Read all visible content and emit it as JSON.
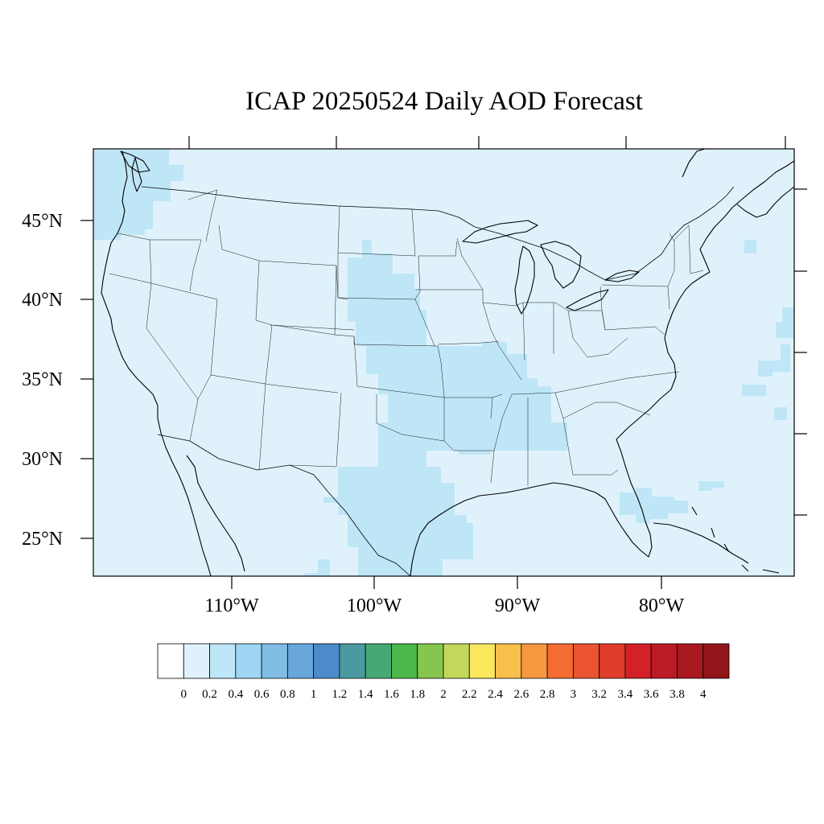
{
  "title": "ICAP 20250524 Daily AOD Forecast",
  "map": {
    "background_color": "#dff2fb",
    "lat_labels": [
      "45°N",
      "40°N",
      "35°N",
      "30°N",
      "25°N"
    ],
    "lon_labels": [
      "110°W",
      "100°W",
      "90°W",
      "80°W"
    ]
  },
  "colorbar": {
    "tick_labels": [
      "0",
      "0.2",
      "0.4",
      "0.6",
      "0.8",
      "1",
      "1.2",
      "1.4",
      "1.6",
      "1.8",
      "2",
      "2.2",
      "2.4",
      "2.6",
      "2.8",
      "3",
      "3.2",
      "3.4",
      "3.6",
      "3.8",
      "4"
    ],
    "colors": [
      "#ffffff",
      "#dff2fb",
      "#bfe6f7",
      "#9ed6f3",
      "#7fbde5",
      "#68a6dc",
      "#4b8bcb",
      "#4a9aa0",
      "#46a873",
      "#4bb84a",
      "#86c64e",
      "#c3d85b",
      "#f9e75d",
      "#f8bf4c",
      "#f7973f",
      "#f46c31",
      "#eb5430",
      "#e03c2c",
      "#d32129",
      "#bb1b24",
      "#a8191f",
      "#921519"
    ]
  }
}
